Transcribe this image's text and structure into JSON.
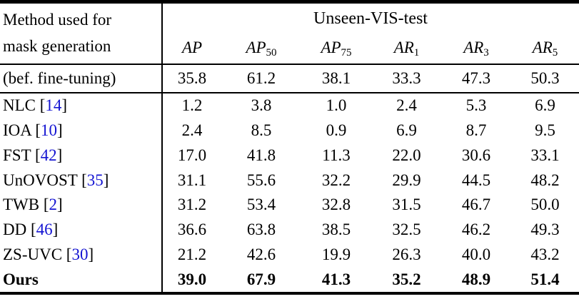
{
  "table": {
    "row_header": {
      "line1": "Method used for",
      "line2": "mask generation"
    },
    "group_header": "Unseen-VIS-test",
    "columns": [
      {
        "base": "AP",
        "sub": ""
      },
      {
        "base": "AP",
        "sub": "50"
      },
      {
        "base": "AP",
        "sub": "75"
      },
      {
        "base": "AR",
        "sub": "1"
      },
      {
        "base": "AR",
        "sub": "3"
      },
      {
        "base": "AR",
        "sub": "5"
      }
    ],
    "rows": [
      {
        "method": "(bef. fine-tuning)",
        "cite": null,
        "bold": false,
        "section_break_after": true,
        "values": [
          "35.8",
          "61.2",
          "38.1",
          "33.3",
          "47.3",
          "50.3"
        ]
      },
      {
        "method": "NLC",
        "cite": "14",
        "bold": false,
        "values": [
          "1.2",
          "3.8",
          "1.0",
          "2.4",
          "5.3",
          "6.9"
        ]
      },
      {
        "method": "IOA",
        "cite": "10",
        "bold": false,
        "values": [
          "2.4",
          "8.5",
          "0.9",
          "6.9",
          "8.7",
          "9.5"
        ]
      },
      {
        "method": "FST",
        "cite": "42",
        "bold": false,
        "values": [
          "17.0",
          "41.8",
          "11.3",
          "22.0",
          "30.6",
          "33.1"
        ]
      },
      {
        "method": "UnOVOST",
        "cite": "35",
        "bold": false,
        "values": [
          "31.1",
          "55.6",
          "32.2",
          "29.9",
          "44.5",
          "48.2"
        ]
      },
      {
        "method": "TWB",
        "cite": "2",
        "bold": false,
        "values": [
          "31.2",
          "53.4",
          "32.8",
          "31.5",
          "46.7",
          "50.0"
        ]
      },
      {
        "method": "DD",
        "cite": "46",
        "bold": false,
        "values": [
          "36.6",
          "63.8",
          "38.5",
          "32.5",
          "46.2",
          "49.3"
        ]
      },
      {
        "method": "ZS-UVC",
        "cite": "30",
        "bold": false,
        "values": [
          "21.2",
          "42.6",
          "19.9",
          "26.3",
          "40.0",
          "43.2"
        ]
      },
      {
        "method": "Ours",
        "cite": null,
        "bold": true,
        "values": [
          "39.0",
          "67.9",
          "41.3",
          "35.2",
          "48.9",
          "51.4"
        ]
      }
    ],
    "colors": {
      "cite_blue": "#1414d2",
      "rule_black": "#000000",
      "background": "#ffffff"
    }
  }
}
